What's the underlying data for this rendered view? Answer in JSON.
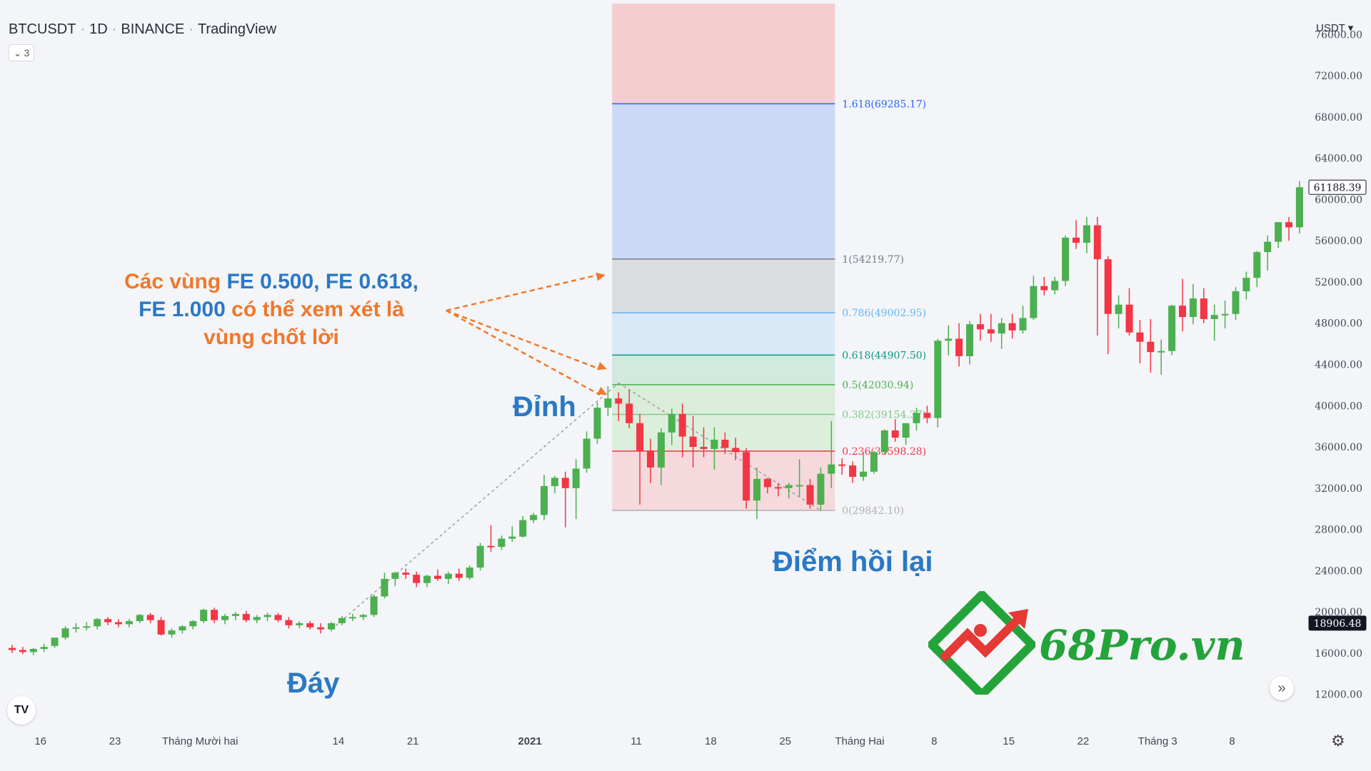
{
  "header": {
    "symbol": "BTCUSDT",
    "interval": "1D",
    "exchange": "BINANCE",
    "platform": "TradingView",
    "hidden_indicators": "3",
    "currency": "USDT"
  },
  "colors": {
    "up": "#4caf50",
    "down": "#f23645",
    "annotation_orange": "#f0782a",
    "annotation_blue": "#2a78c6",
    "brand_green": "#23a33a",
    "brand_red": "#e53935"
  },
  "annotations": {
    "peak": "Đỉnh",
    "bottom": "Đáy",
    "pullback": "Điểm hồi lại",
    "note_line1_a": "Các vùng ",
    "note_line1_b": "FE 0.500, FE 0.618,",
    "note_line2_a": "FE 1.000",
    "note_line2_b": " có thể xem xét là",
    "note_line3": "vùng chốt lời"
  },
  "brand": {
    "name": "68Pro.vn"
  },
  "icons": {
    "tv_logo": "tradingview-logo-icon",
    "scroll": "double-chevron-right-icon",
    "settings": "gear-icon",
    "hide": "chevron-down-icon"
  },
  "chart_data": {
    "type": "candlestick",
    "title": "BTCUSDT · 1D · BINANCE · TradingView",
    "ylim": [
      10000,
      78000
    ],
    "y_ticks": [
      12000,
      16000,
      20000,
      24000,
      28000,
      32000,
      36000,
      40000,
      44000,
      48000,
      52000,
      56000,
      60000,
      64000,
      68000,
      72000,
      76000
    ],
    "y_tick_labels": [
      "12000.00",
      "16000.00",
      "20000.00",
      "24000.00",
      "28000.00",
      "32000.00",
      "36000.00",
      "40000.00",
      "44000.00",
      "48000.00",
      "52000.00",
      "56000.00",
      "60000.00",
      "64000.00",
      "68000.00",
      "72000.00",
      "76000.00"
    ],
    "x_ticks": [
      {
        "label": "16",
        "index": 3
      },
      {
        "label": "23",
        "index": 10
      },
      {
        "label": "Tháng Mười hai",
        "index": 18
      },
      {
        "label": "14",
        "index": 31
      },
      {
        "label": "21",
        "index": 38
      },
      {
        "label": "2021",
        "index": 49
      },
      {
        "label": "11",
        "index": 59
      },
      {
        "label": "18",
        "index": 66
      },
      {
        "label": "25",
        "index": 73
      },
      {
        "label": "Tháng Hai",
        "index": 80
      },
      {
        "label": "8",
        "index": 87
      },
      {
        "label": "15",
        "index": 94
      },
      {
        "label": "22",
        "index": 101
      },
      {
        "label": "Tháng 3",
        "index": 108
      },
      {
        "label": "8",
        "index": 115
      }
    ],
    "price_labels": [
      {
        "value": 61188.39,
        "text": "61188.39",
        "style": "outline"
      },
      {
        "value": 18906.48,
        "text": "18906.48",
        "style": "filled"
      }
    ],
    "candles": [
      {
        "o": 16500,
        "h": 16800,
        "l": 16000,
        "c": 16300
      },
      {
        "o": 16300,
        "h": 16600,
        "l": 15900,
        "c": 16100
      },
      {
        "o": 16100,
        "h": 16500,
        "l": 15800,
        "c": 16400
      },
      {
        "o": 16400,
        "h": 16900,
        "l": 16100,
        "c": 16600
      },
      {
        "o": 16700,
        "h": 17400,
        "l": 16500,
        "c": 17500
      },
      {
        "o": 17500,
        "h": 18600,
        "l": 17300,
        "c": 18400
      },
      {
        "o": 18400,
        "h": 18900,
        "l": 18000,
        "c": 18500
      },
      {
        "o": 18500,
        "h": 19000,
        "l": 18200,
        "c": 18600
      },
      {
        "o": 18600,
        "h": 19400,
        "l": 18300,
        "c": 19300
      },
      {
        "o": 19300,
        "h": 19500,
        "l": 18700,
        "c": 19000
      },
      {
        "o": 19000,
        "h": 19300,
        "l": 18500,
        "c": 18800
      },
      {
        "o": 18800,
        "h": 19300,
        "l": 18500,
        "c": 19100
      },
      {
        "o": 19100,
        "h": 19800,
        "l": 18900,
        "c": 19700
      },
      {
        "o": 19700,
        "h": 19900,
        "l": 18900,
        "c": 19200
      },
      {
        "o": 19200,
        "h": 19500,
        "l": 17700,
        "c": 17800
      },
      {
        "o": 17800,
        "h": 18400,
        "l": 17500,
        "c": 18200
      },
      {
        "o": 18200,
        "h": 18700,
        "l": 17900,
        "c": 18600
      },
      {
        "o": 18600,
        "h": 19200,
        "l": 18300,
        "c": 19100
      },
      {
        "o": 19100,
        "h": 20300,
        "l": 18900,
        "c": 20200
      },
      {
        "o": 20200,
        "h": 20400,
        "l": 18900,
        "c": 19200
      },
      {
        "o": 19200,
        "h": 19800,
        "l": 18800,
        "c": 19600
      },
      {
        "o": 19600,
        "h": 20000,
        "l": 19200,
        "c": 19800
      },
      {
        "o": 19800,
        "h": 20100,
        "l": 19000,
        "c": 19200
      },
      {
        "o": 19200,
        "h": 19700,
        "l": 18900,
        "c": 19500
      },
      {
        "o": 19500,
        "h": 19900,
        "l": 19100,
        "c": 19700
      },
      {
        "o": 19700,
        "h": 19900,
        "l": 19000,
        "c": 19200
      },
      {
        "o": 19200,
        "h": 19500,
        "l": 18400,
        "c": 18700
      },
      {
        "o": 18700,
        "h": 19100,
        "l": 18400,
        "c": 18900
      },
      {
        "o": 18900,
        "h": 19100,
        "l": 18300,
        "c": 18500
      },
      {
        "o": 18500,
        "h": 18900,
        "l": 17900,
        "c": 18300
      },
      {
        "o": 18300,
        "h": 19000,
        "l": 18100,
        "c": 18900
      },
      {
        "o": 18900,
        "h": 19600,
        "l": 18700,
        "c": 19400
      },
      {
        "o": 19400,
        "h": 19800,
        "l": 19100,
        "c": 19500
      },
      {
        "o": 19500,
        "h": 19800,
        "l": 19200,
        "c": 19700
      },
      {
        "o": 19700,
        "h": 21700,
        "l": 19500,
        "c": 21500
      },
      {
        "o": 21500,
        "h": 23800,
        "l": 21300,
        "c": 23200
      },
      {
        "o": 23200,
        "h": 23900,
        "l": 22500,
        "c": 23800
      },
      {
        "o": 23800,
        "h": 24200,
        "l": 23200,
        "c": 23600
      },
      {
        "o": 23600,
        "h": 23900,
        "l": 22400,
        "c": 22800
      },
      {
        "o": 22800,
        "h": 23600,
        "l": 22400,
        "c": 23500
      },
      {
        "o": 23500,
        "h": 24100,
        "l": 23000,
        "c": 23200
      },
      {
        "o": 23200,
        "h": 23900,
        "l": 22700,
        "c": 23700
      },
      {
        "o": 23700,
        "h": 24200,
        "l": 23000,
        "c": 23300
      },
      {
        "o": 23300,
        "h": 24500,
        "l": 23100,
        "c": 24300
      },
      {
        "o": 24300,
        "h": 26700,
        "l": 24000,
        "c": 26400
      },
      {
        "o": 26400,
        "h": 28400,
        "l": 25800,
        "c": 26300
      },
      {
        "o": 26300,
        "h": 27400,
        "l": 26000,
        "c": 27100
      },
      {
        "o": 27100,
        "h": 28300,
        "l": 26800,
        "c": 27300
      },
      {
        "o": 27300,
        "h": 29300,
        "l": 27200,
        "c": 28900
      },
      {
        "o": 28900,
        "h": 29600,
        "l": 28600,
        "c": 29400
      },
      {
        "o": 29400,
        "h": 33300,
        "l": 28900,
        "c": 32200
      },
      {
        "o": 32200,
        "h": 33200,
        "l": 31500,
        "c": 33000
      },
      {
        "o": 33000,
        "h": 33600,
        "l": 28200,
        "c": 32000
      },
      {
        "o": 32000,
        "h": 34800,
        "l": 29000,
        "c": 33900
      },
      {
        "o": 33900,
        "h": 37500,
        "l": 33500,
        "c": 36800
      },
      {
        "o": 36800,
        "h": 40300,
        "l": 36300,
        "c": 39800
      },
      {
        "o": 39800,
        "h": 41900,
        "l": 39000,
        "c": 40700
      },
      {
        "o": 40700,
        "h": 41300,
        "l": 38500,
        "c": 40200
      },
      {
        "o": 40200,
        "h": 41500,
        "l": 37800,
        "c": 38300
      },
      {
        "o": 38300,
        "h": 39200,
        "l": 30400,
        "c": 35600
      },
      {
        "o": 35600,
        "h": 36800,
        "l": 32500,
        "c": 34000
      },
      {
        "o": 34000,
        "h": 37800,
        "l": 32300,
        "c": 37400
      },
      {
        "o": 37400,
        "h": 39700,
        "l": 36200,
        "c": 39200
      },
      {
        "o": 39200,
        "h": 40200,
        "l": 35000,
        "c": 37000
      },
      {
        "o": 37000,
        "h": 39000,
        "l": 34000,
        "c": 36000
      },
      {
        "o": 36000,
        "h": 37900,
        "l": 35000,
        "c": 35800
      },
      {
        "o": 35800,
        "h": 37900,
        "l": 33800,
        "c": 36700
      },
      {
        "o": 36700,
        "h": 37400,
        "l": 35300,
        "c": 35900
      },
      {
        "o": 35900,
        "h": 36900,
        "l": 34700,
        "c": 35500
      },
      {
        "o": 35500,
        "h": 35900,
        "l": 30000,
        "c": 30800
      },
      {
        "o": 30800,
        "h": 34000,
        "l": 29000,
        "c": 32900
      },
      {
        "o": 32900,
        "h": 33000,
        "l": 31500,
        "c": 32100
      },
      {
        "o": 32100,
        "h": 32500,
        "l": 31200,
        "c": 32000
      },
      {
        "o": 32000,
        "h": 32500,
        "l": 31000,
        "c": 32300
      },
      {
        "o": 32300,
        "h": 34800,
        "l": 31200,
        "c": 32300
      },
      {
        "o": 32300,
        "h": 32900,
        "l": 30000,
        "c": 30400
      },
      {
        "o": 30400,
        "h": 34000,
        "l": 29800,
        "c": 33400
      },
      {
        "o": 33400,
        "h": 38500,
        "l": 32000,
        "c": 34300
      },
      {
        "o": 34300,
        "h": 34900,
        "l": 33300,
        "c": 34200
      },
      {
        "o": 34200,
        "h": 34600,
        "l": 32500,
        "c": 33100
      },
      {
        "o": 33100,
        "h": 35500,
        "l": 32700,
        "c": 33600
      },
      {
        "o": 33600,
        "h": 35600,
        "l": 33400,
        "c": 35500
      },
      {
        "o": 35500,
        "h": 37700,
        "l": 35300,
        "c": 37600
      },
      {
        "o": 37600,
        "h": 38700,
        "l": 36500,
        "c": 36900
      },
      {
        "o": 36900,
        "h": 38300,
        "l": 36200,
        "c": 38300
      },
      {
        "o": 38300,
        "h": 39800,
        "l": 37600,
        "c": 39300
      },
      {
        "o": 39300,
        "h": 40000,
        "l": 38300,
        "c": 38800
      },
      {
        "o": 38800,
        "h": 46500,
        "l": 37900,
        "c": 46300
      },
      {
        "o": 46300,
        "h": 47800,
        "l": 44900,
        "c": 46500
      },
      {
        "o": 46500,
        "h": 48000,
        "l": 43800,
        "c": 44800
      },
      {
        "o": 44800,
        "h": 48200,
        "l": 44000,
        "c": 47900
      },
      {
        "o": 47900,
        "h": 48900,
        "l": 46300,
        "c": 47400
      },
      {
        "o": 47400,
        "h": 48900,
        "l": 46200,
        "c": 47000
      },
      {
        "o": 47000,
        "h": 48500,
        "l": 45500,
        "c": 48000
      },
      {
        "o": 48000,
        "h": 48900,
        "l": 46500,
        "c": 47300
      },
      {
        "o": 47300,
        "h": 49700,
        "l": 47000,
        "c": 48500
      },
      {
        "o": 48500,
        "h": 52600,
        "l": 48300,
        "c": 51600
      },
      {
        "o": 51600,
        "h": 52500,
        "l": 50700,
        "c": 51200
      },
      {
        "o": 51200,
        "h": 52500,
        "l": 50800,
        "c": 52100
      },
      {
        "o": 52100,
        "h": 56500,
        "l": 51600,
        "c": 56300
      },
      {
        "o": 56300,
        "h": 58000,
        "l": 55200,
        "c": 55800
      },
      {
        "o": 55800,
        "h": 58300,
        "l": 54800,
        "c": 57500
      },
      {
        "o": 57500,
        "h": 58300,
        "l": 46800,
        "c": 54200
      },
      {
        "o": 54200,
        "h": 54500,
        "l": 45000,
        "c": 48900
      },
      {
        "o": 48900,
        "h": 50700,
        "l": 47500,
        "c": 49800
      },
      {
        "o": 49800,
        "h": 51400,
        "l": 46800,
        "c": 47100
      },
      {
        "o": 47100,
        "h": 48300,
        "l": 44100,
        "c": 46200
      },
      {
        "o": 46200,
        "h": 48400,
        "l": 43200,
        "c": 45200
      },
      {
        "o": 45200,
        "h": 46400,
        "l": 43000,
        "c": 45300
      },
      {
        "o": 45300,
        "h": 49800,
        "l": 44900,
        "c": 49700
      },
      {
        "o": 49700,
        "h": 52300,
        "l": 47200,
        "c": 48600
      },
      {
        "o": 48600,
        "h": 51800,
        "l": 47900,
        "c": 50400
      },
      {
        "o": 50400,
        "h": 51400,
        "l": 48000,
        "c": 48400
      },
      {
        "o": 48400,
        "h": 49800,
        "l": 46300,
        "c": 48800
      },
      {
        "o": 48800,
        "h": 50200,
        "l": 47500,
        "c": 48900
      },
      {
        "o": 48900,
        "h": 51500,
        "l": 48300,
        "c": 51100
      },
      {
        "o": 51100,
        "h": 53000,
        "l": 50300,
        "c": 52400
      },
      {
        "o": 52400,
        "h": 55000,
        "l": 51500,
        "c": 54900
      },
      {
        "o": 54900,
        "h": 56500,
        "l": 53100,
        "c": 55900
      },
      {
        "o": 55900,
        "h": 57800,
        "l": 55300,
        "c": 57800
      },
      {
        "o": 57800,
        "h": 58300,
        "l": 56000,
        "c": 57300
      },
      {
        "o": 57300,
        "h": 61800,
        "l": 56700,
        "c": 61188.39
      }
    ],
    "fib_extension": {
      "x_start_index": 57,
      "x_end_index": 77,
      "levels": [
        {
          "ratio": "0",
          "value": 29842.1,
          "label": "0(29842.10)",
          "color": "#b0b0b0"
        },
        {
          "ratio": "0.236",
          "value": 35598.28,
          "label": "0.236(35598.28)",
          "color": "#f23645"
        },
        {
          "ratio": "0.382",
          "value": 39154.37,
          "label": "0.382(39154.37)",
          "color": "#81c784"
        },
        {
          "ratio": "0.5",
          "value": 42030.94,
          "label": "0.5(42030.94)",
          "color": "#4caf50"
        },
        {
          "ratio": "0.618",
          "value": 44907.5,
          "label": "0.618(44907.50)",
          "color": "#089981"
        },
        {
          "ratio": "0.786",
          "value": 49002.95,
          "label": "0.786(49002.95)",
          "color": "#64b5f6"
        },
        {
          "ratio": "1",
          "value": 54219.77,
          "label": "1(54219.77)",
          "color": "#787b86"
        },
        {
          "ratio": "1.618",
          "value": 69285.17,
          "label": "1.618(69285.17)",
          "color": "#2962ff"
        }
      ],
      "top_value": 79000
    },
    "trend_lines": [
      {
        "from_index": 30,
        "from_value": 18300,
        "to_index": 57,
        "to_value": 42200
      },
      {
        "from_index": 57,
        "from_value": 42200,
        "to_index": 76,
        "to_value": 29842.1
      }
    ]
  }
}
